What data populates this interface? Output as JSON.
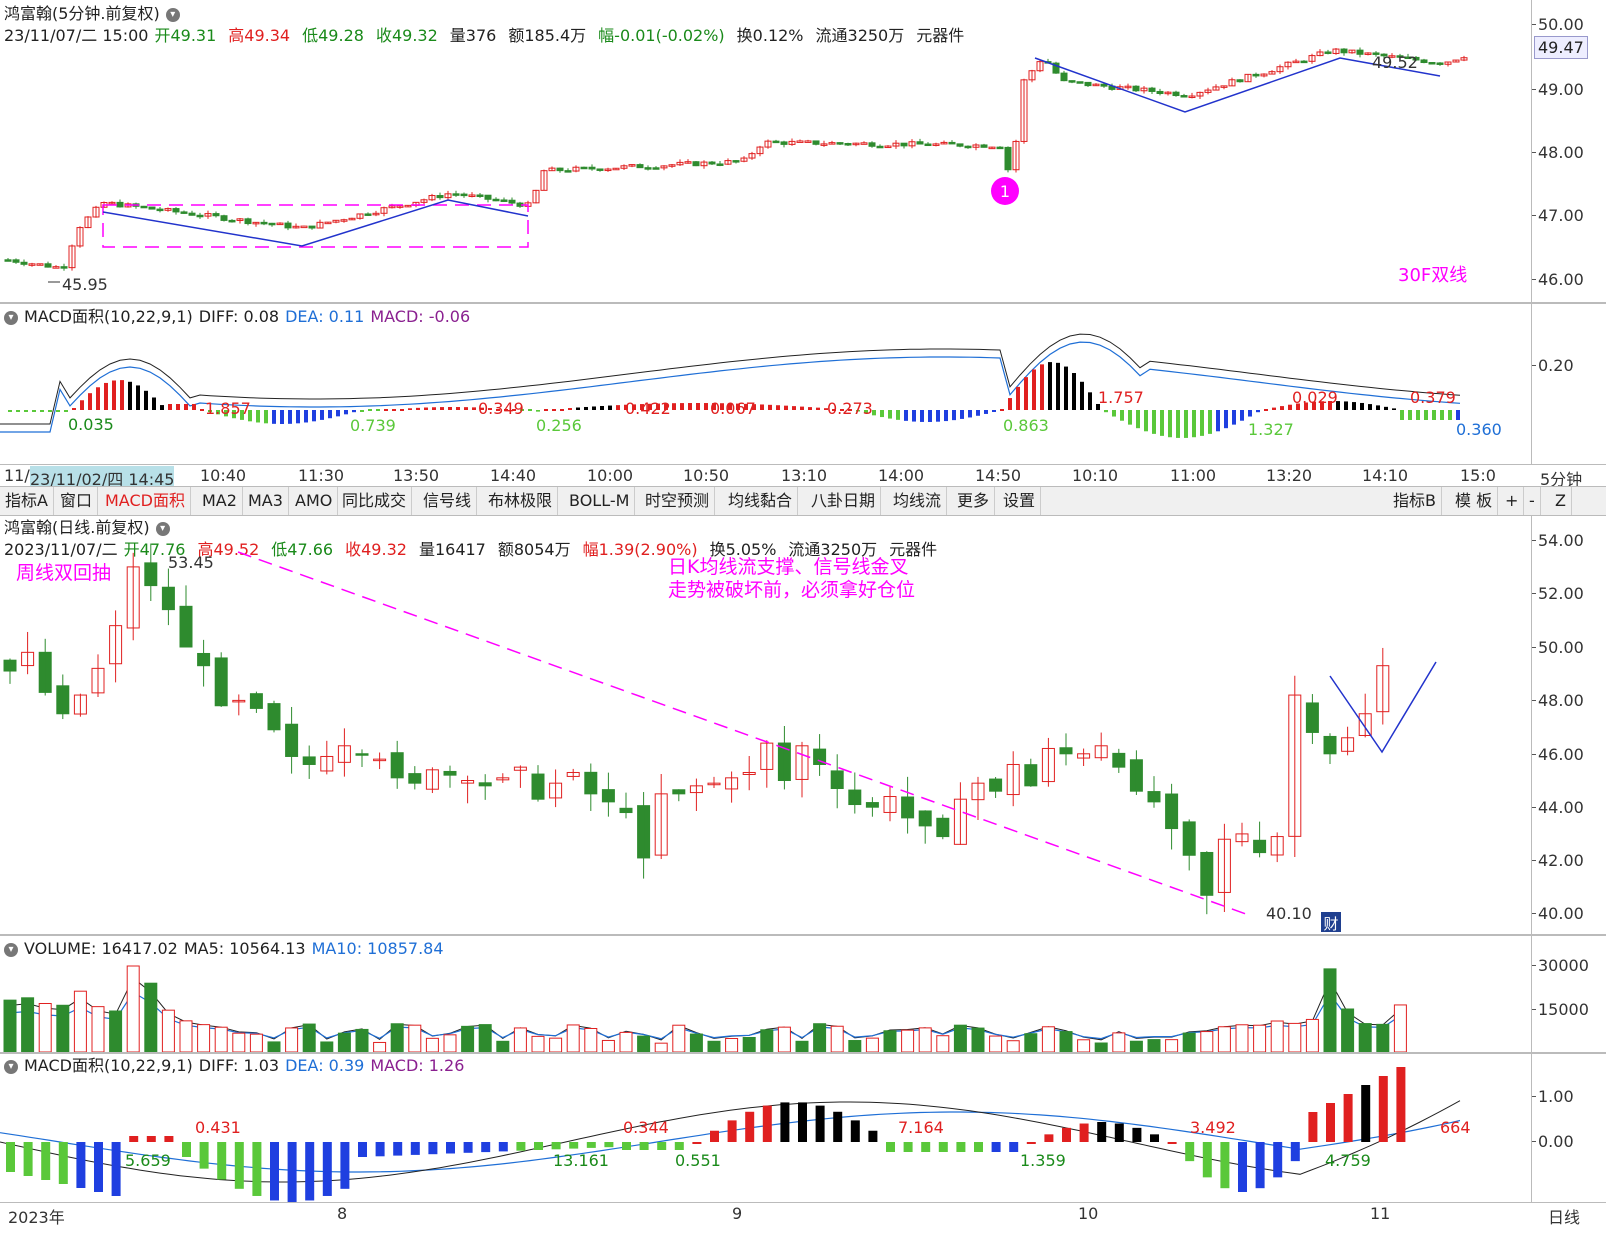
{
  "intraday": {
    "title": "鸿富翰(5分钟.前复权)",
    "date": "23/11/07/二 15:00",
    "open_label": "开",
    "open": "49.31",
    "high_label": "高",
    "high": "49.34",
    "low_label": "低",
    "low": "49.28",
    "close_label": "收",
    "close": "49.32",
    "vol_label": "量",
    "vol": "376",
    "amt_label": "额",
    "amt": "185.4万",
    "chg_label": "幅",
    "chg": "-0.01(-0.02%)",
    "turnover_label": "换",
    "turnover": "0.12%",
    "float_label": "流通",
    "float": "3250万",
    "industry": "元器件",
    "low_mark": "45.95",
    "high_mark": "49.52",
    "annotation": "30F双线",
    "marker_num": "1",
    "price_ticks": [
      "50.00",
      "49.00",
      "48.00",
      "47.00",
      "46.00"
    ],
    "current_price": "49.47"
  },
  "intraday_macd": {
    "title": "MACD面积(10,22,9,1)",
    "diff_label": "DIFF: 0.08",
    "dea_label": "DEA: 0.11",
    "macd_label": "MACD: -0.06",
    "axis_tick": "0.20",
    "area_labels": [
      "0.035",
      "1.857",
      "0.739",
      "0.349",
      "0.256",
      "0.422",
      "0.067",
      "0.273",
      "0.863",
      "1.757",
      "1.327",
      "0.029",
      "0.379",
      "0.360"
    ]
  },
  "time_axis": {
    "labels": [
      "11/",
      "23/11/02/四 14:45",
      "10:40",
      "11:30",
      "13:50",
      "14:40",
      "10:00",
      "10:50",
      "13:10",
      "14:00",
      "14:50",
      "10:10",
      "11:00",
      "13:20",
      "14:10",
      "15:0"
    ],
    "period": "5分钟"
  },
  "toolbar": {
    "left_items": [
      "指标A",
      "窗口",
      "MACD面积",
      "MA2",
      "MA3",
      "AMO",
      "同比成交",
      "信号线",
      "布林极限",
      "BOLL-M",
      "时空预测",
      "均线黏合",
      "八卦日期",
      "均线流",
      "更多",
      "设置"
    ],
    "right_items": [
      "指标B",
      "模 板",
      "+",
      "-",
      "Z"
    ]
  },
  "daily": {
    "title": "鸿富翰(日线.前复权)",
    "date": "2023/11/07/二",
    "open_label": "开",
    "open": "47.76",
    "high_label": "高",
    "high": "49.52",
    "low_label": "低",
    "low": "47.66",
    "close_label": "收",
    "close": "49.32",
    "vol_label": "量",
    "vol": "16417",
    "amt_label": "额",
    "amt": "8054万",
    "chg_label": "幅",
    "chg": "1.39(2.90%)",
    "turnover_label": "换",
    "turnover": "5.05%",
    "float_label": "流通",
    "float": "3250万",
    "industry": "元器件",
    "note_left": "周线双回抽",
    "note_line1": "日K均线流支撑、信号线金叉",
    "note_line2": "走势被破坏前，必须拿好仓位",
    "high_mark": "53.45",
    "low_mark": "40.10",
    "fin_badge": "财",
    "price_ticks": [
      "54.00",
      "52.00",
      "50.00",
      "48.00",
      "46.00",
      "44.00",
      "42.00",
      "40.00"
    ]
  },
  "volume": {
    "vol_label": "VOLUME: 16417.02",
    "ma5_label": "MA5: 10564.13",
    "ma10_label": "MA10: 10857.84",
    "ticks": [
      "30000",
      "15000"
    ]
  },
  "daily_macd": {
    "title": "MACD面积(10,22,9,1)",
    "diff_label": "DIFF: 1.03",
    "dea_label": "DEA: 0.39",
    "macd_label": "MACD: 1.26",
    "ticks": [
      "1.00",
      "0.00"
    ],
    "area_labels": [
      "5.659",
      "0.431",
      "13.161",
      "0.344",
      "0.551",
      "7.164",
      "1.359",
      "3.492",
      "4.759",
      "664"
    ]
  },
  "bottom_axis": {
    "labels": [
      "2023年",
      "8",
      "9",
      "10",
      "11"
    ],
    "period": "日线"
  },
  "colors": {
    "up": "#e02020",
    "down": "#2e8b2e",
    "blue_bar": "#1f3fe0",
    "light_green_bar": "#5ac83a",
    "magenta": "#ff00ff",
    "trend_blue": "#2233cc"
  }
}
